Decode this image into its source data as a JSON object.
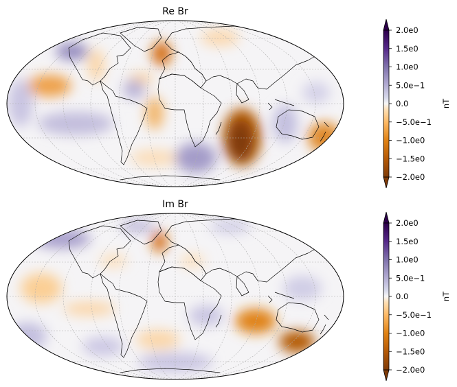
{
  "panels": [
    {
      "title": "Re Br",
      "colorbar": {
        "label": "nT",
        "ticks": [
          "2.0e0",
          "1.5e0",
          "1.0e0",
          "5.0e−1",
          "0.0",
          "−5.0e−1",
          "−1.0e0",
          "−1.5e0",
          "−2.0e0"
        ],
        "range": [
          -2.0,
          2.0
        ],
        "extend": "both"
      }
    },
    {
      "title": "Im Br",
      "colorbar": {
        "label": "nT",
        "ticks": [
          "2.0e0",
          "1.5e0",
          "1.0e0",
          "5.0e−1",
          "0.0",
          "−5.0e−1",
          "−1.0e0",
          "−1.5e0",
          "−2.0e0"
        ],
        "range": [
          -2.0,
          2.0
        ],
        "extend": "both"
      }
    }
  ],
  "map": {
    "projection": "mollweide",
    "colormap": "PuOr",
    "graticule": true,
    "coastlines": true,
    "colors": {
      "negative_max": "#7f3b08",
      "negative_mid": "#e08214",
      "neutral": "#f7f7f7",
      "positive_mid": "#8073ac",
      "positive_max": "#2d004b",
      "coastline": "#000000",
      "gridline": "#b0b0b0"
    }
  }
}
